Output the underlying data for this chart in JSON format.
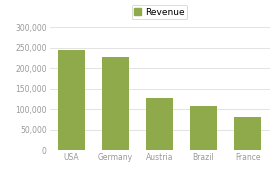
{
  "categories": [
    "USA",
    "Germany",
    "Austria",
    "Brazil",
    "France"
  ],
  "values": [
    245000,
    228000,
    128000,
    108000,
    80000
  ],
  "bar_color": "#8faa4b",
  "background_color": "#ffffff",
  "ylim": [
    0,
    300000
  ],
  "yticks": [
    0,
    50000,
    100000,
    150000,
    200000,
    250000,
    300000
  ],
  "legend_label": "Revenue",
  "grid_color": "#d8d8d8",
  "tick_label_color": "#999999",
  "axis_label_color": "#999999",
  "legend_fontsize": 6.5,
  "tick_fontsize": 5.5
}
